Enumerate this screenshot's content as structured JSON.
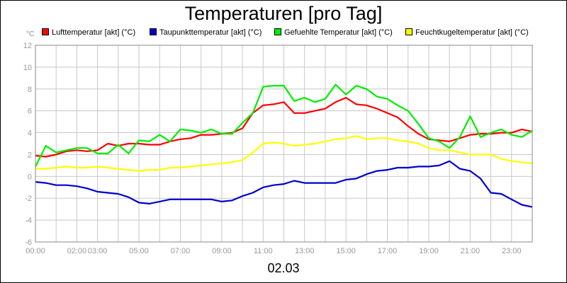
{
  "chart_data": {
    "type": "line",
    "title": "Temperaturen [pro Tag]",
    "date_label": "02.03",
    "ylabel": "°C",
    "ylim": [
      -6,
      12
    ],
    "yticks": [
      "-6",
      "-4",
      "-2",
      "0",
      "2",
      "4",
      "6",
      "8",
      "10",
      "12"
    ],
    "xlim": [
      0,
      24
    ],
    "xticks": [
      {
        "t": 0,
        "label": "00:00"
      },
      {
        "t": 2,
        "label": "02:00"
      },
      {
        "t": 3,
        "label": "03:00"
      },
      {
        "t": 5,
        "label": "05:00"
      },
      {
        "t": 7,
        "label": "07:00"
      },
      {
        "t": 9,
        "label": "09:00"
      },
      {
        "t": 11,
        "label": "11:00"
      },
      {
        "t": 13,
        "label": "13:00"
      },
      {
        "t": 15,
        "label": "15:00"
      },
      {
        "t": 17,
        "label": "17:00"
      },
      {
        "t": 19,
        "label": "19:00"
      },
      {
        "t": 21,
        "label": "21:00"
      },
      {
        "t": 23,
        "label": "23:00"
      }
    ],
    "grid": true,
    "legend_position": "top",
    "series": [
      {
        "name": "Lufttemperatur [akt] (°C)",
        "color": "#ff0000",
        "x": [
          0,
          0.5,
          1,
          1.5,
          2,
          2.5,
          3,
          3.5,
          4,
          4.5,
          5,
          5.5,
          6,
          6.5,
          7,
          7.5,
          8,
          8.5,
          9,
          9.5,
          10,
          10.5,
          11,
          11.5,
          12,
          12.5,
          13,
          13.5,
          14,
          14.5,
          15,
          15.5,
          16,
          16.5,
          17,
          17.5,
          18,
          18.5,
          19,
          19.5,
          20,
          20.5,
          21,
          21.5,
          22,
          22.5,
          23,
          23.5,
          24
        ],
        "values": [
          1.9,
          1.8,
          2.0,
          2.3,
          2.4,
          2.3,
          2.4,
          3.0,
          2.8,
          3.0,
          3.0,
          2.9,
          2.9,
          3.2,
          3.4,
          3.5,
          3.8,
          3.8,
          3.9,
          4.0,
          4.4,
          5.8,
          6.5,
          6.6,
          6.8,
          5.8,
          5.8,
          6.0,
          6.2,
          6.8,
          7.2,
          6.6,
          6.5,
          6.2,
          5.8,
          5.4,
          4.6,
          3.9,
          3.4,
          3.3,
          3.2,
          3.5,
          3.8,
          3.9,
          3.9,
          4.0,
          4.0,
          4.3,
          4.1
        ]
      },
      {
        "name": "Taupunkttemperatur [akt] (°C)",
        "color": "#0000cc",
        "x": [
          0,
          0.5,
          1,
          1.5,
          2,
          2.5,
          3,
          3.5,
          4,
          4.5,
          5,
          5.5,
          6,
          6.5,
          7,
          7.5,
          8,
          8.5,
          9,
          9.5,
          10,
          10.5,
          11,
          11.5,
          12,
          12.5,
          13,
          13.5,
          14,
          14.5,
          15,
          15.5,
          16,
          16.5,
          17,
          17.5,
          18,
          18.5,
          19,
          19.5,
          20,
          20.5,
          21,
          21.5,
          22,
          22.5,
          23,
          23.5,
          24
        ],
        "values": [
          -0.5,
          -0.6,
          -0.8,
          -0.8,
          -0.9,
          -1.1,
          -1.4,
          -1.5,
          -1.6,
          -1.9,
          -2.4,
          -2.5,
          -2.3,
          -2.1,
          -2.1,
          -2.1,
          -2.1,
          -2.1,
          -2.3,
          -2.2,
          -1.8,
          -1.5,
          -1.0,
          -0.8,
          -0.7,
          -0.4,
          -0.6,
          -0.6,
          -0.6,
          -0.6,
          -0.3,
          -0.2,
          0.2,
          0.5,
          0.6,
          0.8,
          0.8,
          0.9,
          0.9,
          1.0,
          1.4,
          0.7,
          0.5,
          -0.2,
          -1.5,
          -1.6,
          -2.1,
          -2.6,
          -2.8
        ]
      },
      {
        "name": "Gefuehlte Temperatur [akt] (°C)",
        "color": "#00ee00",
        "x": [
          0,
          0.5,
          1,
          1.5,
          2,
          2.5,
          3,
          3.5,
          4,
          4.5,
          5,
          5.5,
          6,
          6.5,
          7,
          7.5,
          8,
          8.5,
          9,
          9.5,
          10,
          10.5,
          11,
          11.5,
          12,
          12.5,
          13,
          13.5,
          14,
          14.5,
          15,
          15.5,
          16,
          16.5,
          17,
          17.5,
          18,
          18.5,
          19,
          19.5,
          20,
          20.5,
          21,
          21.5,
          22,
          22.5,
          23,
          23.5,
          24
        ],
        "values": [
          0.9,
          2.8,
          2.2,
          2.4,
          2.6,
          2.6,
          2.1,
          2.1,
          2.9,
          2.1,
          3.3,
          3.2,
          3.8,
          3.2,
          4.3,
          4.2,
          4.0,
          4.3,
          3.9,
          3.9,
          4.9,
          5.8,
          8.2,
          8.3,
          8.3,
          6.9,
          7.2,
          6.8,
          7.1,
          8.4,
          7.5,
          8.3,
          8.0,
          7.3,
          7.1,
          6.5,
          6.0,
          4.8,
          3.5,
          3.2,
          2.6,
          3.6,
          5.5,
          3.6,
          4.0,
          4.3,
          3.8,
          3.6,
          4.2
        ]
      },
      {
        "name": "Feuchtkugeltemperatur [akt] (°C)",
        "color": "#ffff00",
        "x": [
          0,
          0.5,
          1,
          1.5,
          2,
          2.5,
          3,
          3.5,
          4,
          4.5,
          5,
          5.5,
          6,
          6.5,
          7,
          7.5,
          8,
          8.5,
          9,
          9.5,
          10,
          10.5,
          11,
          11.5,
          12,
          12.5,
          13,
          13.5,
          14,
          14.5,
          15,
          15.5,
          16,
          16.5,
          17,
          17.5,
          18,
          18.5,
          19,
          19.5,
          20,
          20.5,
          21,
          21.5,
          22,
          22.5,
          23,
          23.5,
          24
        ],
        "values": [
          0.7,
          0.7,
          0.8,
          0.9,
          0.8,
          0.8,
          0.9,
          0.8,
          0.7,
          0.6,
          0.5,
          0.6,
          0.6,
          0.8,
          0.8,
          0.9,
          1.0,
          1.1,
          1.2,
          1.3,
          1.5,
          2.2,
          3.0,
          3.1,
          3.0,
          2.8,
          2.9,
          3.0,
          3.2,
          3.4,
          3.5,
          3.7,
          3.4,
          3.5,
          3.5,
          3.3,
          3.2,
          3.0,
          2.6,
          2.4,
          2.4,
          2.2,
          2.0,
          2.0,
          2.0,
          1.6,
          1.4,
          1.3,
          1.2
        ]
      }
    ]
  }
}
